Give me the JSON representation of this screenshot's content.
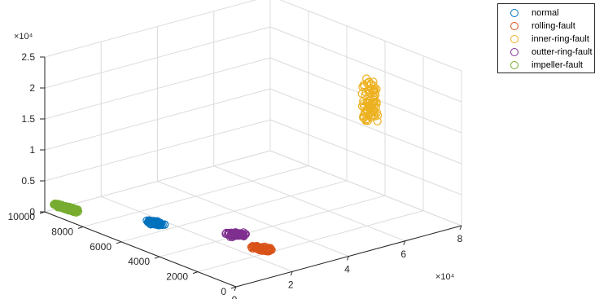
{
  "chart_data": {
    "type": "scatter3d",
    "title": "",
    "xlabel": "",
    "ylabel": "",
    "zlabel": "",
    "x_exponent": "×10⁴",
    "z_exponent": "×10⁴",
    "xlim": [
      0,
      80000
    ],
    "ylim": [
      0,
      10000
    ],
    "zlim": [
      0,
      25000
    ],
    "x_ticks": [
      {
        "v": 0,
        "label": "0"
      },
      {
        "v": 20000,
        "label": "2"
      },
      {
        "v": 40000,
        "label": "4"
      },
      {
        "v": 60000,
        "label": "6"
      },
      {
        "v": 80000,
        "label": "8"
      }
    ],
    "y_ticks": [
      {
        "v": 0,
        "label": "0"
      },
      {
        "v": 2000,
        "label": "2000"
      },
      {
        "v": 4000,
        "label": "4000"
      },
      {
        "v": 6000,
        "label": "6000"
      },
      {
        "v": 8000,
        "label": "8000"
      },
      {
        "v": 10000,
        "label": "10000"
      }
    ],
    "z_ticks": [
      {
        "v": 0,
        "label": "0"
      },
      {
        "v": 5000,
        "label": "0.5"
      },
      {
        "v": 10000,
        "label": "1"
      },
      {
        "v": 15000,
        "label": "1.5"
      },
      {
        "v": 20000,
        "label": "2"
      },
      {
        "v": 25000,
        "label": "2.5"
      }
    ],
    "grid": true,
    "legend_position": "top-right",
    "series": [
      {
        "name": "normal",
        "color": "#0072BD",
        "x": [
          14800,
          17500
        ],
        "y": [
          6800,
          6400
        ],
        "z": [
          400,
          200
        ],
        "count": 60
      },
      {
        "name": "rolling-fault",
        "color": "#D95319",
        "x": [
          23500,
          26500
        ],
        "y": [
          2600,
          2100
        ],
        "z": [
          300,
          200
        ],
        "count": 50
      },
      {
        "name": "inner-ring-fault",
        "color": "#EDB120",
        "x": [
          60000,
          62000
        ],
        "y": [
          2200,
          1800
        ],
        "z": [
          17000,
          23500
        ],
        "count": 80
      },
      {
        "name": "outter-ring-fault",
        "color": "#7E2F8E",
        "x": [
          24500,
          28500
        ],
        "y": [
          4000,
          3800
        ],
        "z": [
          500,
          400
        ],
        "count": 55
      },
      {
        "name": "impeller-fault",
        "color": "#77AC30",
        "x": [
          2000,
          6000
        ],
        "y": [
          9800,
          9200
        ],
        "z": [
          1200,
          400
        ],
        "count": 120
      }
    ]
  }
}
